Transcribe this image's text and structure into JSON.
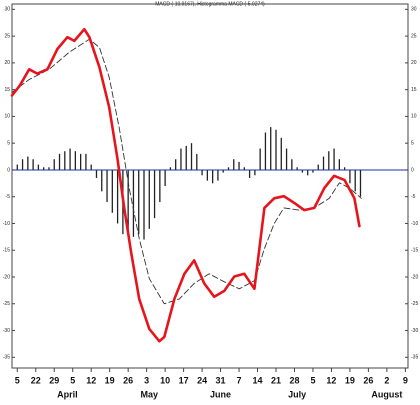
{
  "chart_data": {
    "type": "line",
    "title": "MACD (-10.9167), Histogramma MACD (-5.0274)",
    "xlim": [
      -2,
      148
    ],
    "ylim": [
      -37,
      31
    ],
    "yticks": [
      30,
      25,
      20,
      15,
      10,
      5,
      0,
      -5,
      -10,
      -15,
      -20,
      -25,
      -30,
      -35
    ],
    "xticks": [
      {
        "value": 0,
        "label": "5"
      },
      {
        "value": 7,
        "label": "22"
      },
      {
        "value": 14,
        "label": "29"
      },
      {
        "value": 21,
        "label": "5"
      },
      {
        "value": 28,
        "label": "12"
      },
      {
        "value": 35,
        "label": "19"
      },
      {
        "value": 42,
        "label": "26"
      },
      {
        "value": 49,
        "label": "3"
      },
      {
        "value": 56,
        "label": "10"
      },
      {
        "value": 63,
        "label": "17"
      },
      {
        "value": 70,
        "label": "24"
      },
      {
        "value": 77,
        "label": "31"
      },
      {
        "value": 84,
        "label": "7"
      },
      {
        "value": 91,
        "label": "14"
      },
      {
        "value": 98,
        "label": "21"
      },
      {
        "value": 105,
        "label": "28"
      },
      {
        "value": 112,
        "label": "5"
      },
      {
        "value": 119,
        "label": "12"
      },
      {
        "value": 126,
        "label": "19"
      },
      {
        "value": 133,
        "label": "26"
      },
      {
        "value": 140,
        "label": "2"
      },
      {
        "value": 147,
        "label": "9"
      }
    ],
    "month_labels": [
      {
        "value": 19,
        "label": "April"
      },
      {
        "value": 50,
        "label": "May"
      },
      {
        "value": 77,
        "label": "June"
      },
      {
        "value": 106,
        "label": "July"
      },
      {
        "value": 140,
        "label": "August"
      }
    ],
    "zero_line_color": "#1f2fa0",
    "series": [
      {
        "color": "#e8141c",
        "dash": false,
        "x": [
          -2,
          1,
          4.5,
          7.6,
          11.4,
          15.2,
          19,
          21.6,
          25.4,
          27.3,
          31.1,
          34.8,
          37.9,
          40.5,
          43.2,
          46.2,
          50,
          53.8,
          55.7,
          59.5,
          63.3,
          67,
          70.8,
          74.6,
          78.4,
          82.2,
          86,
          89.8,
          93.6,
          97.3,
          101,
          105,
          108.7,
          112.5,
          116.3,
          120,
          124,
          127.7,
          129.6
        ],
        "values": [
          13.9,
          15.8,
          18.8,
          18,
          18.8,
          22.6,
          24.8,
          24.1,
          26.3,
          24.8,
          19.2,
          11.7,
          2.3,
          -7.1,
          -15.6,
          -24.1,
          -29.7,
          -32,
          -31.2,
          -24.1,
          -19.4,
          -16.9,
          -21.2,
          -23.7,
          -22.6,
          -19.9,
          -19.4,
          -22.2,
          -7.1,
          -5.3,
          -4.9,
          -6.2,
          -7.5,
          -7.1,
          -3.4,
          -1.1,
          -1.9,
          -5.3,
          -10.5
        ]
      },
      {
        "color": "#333333",
        "dash": true,
        "x": [
          -2,
          4.5,
          12.1,
          19.7,
          27.3,
          31.1,
          34.8,
          38.6,
          42.4,
          46.2,
          50,
          55.7,
          61.4,
          67,
          72.7,
          78.4,
          84.1,
          89.8,
          93.6,
          97.3,
          101,
          106.8,
          112.5,
          118.2,
          122,
          125.8,
          130.3
        ],
        "values": [
          14.5,
          16.9,
          18.8,
          22,
          24.4,
          22.9,
          17.3,
          7.9,
          -3.4,
          -12.8,
          -20.3,
          -25,
          -24.1,
          -21.2,
          -19.4,
          -20.9,
          -22.2,
          -20.7,
          -14.7,
          -10,
          -7.1,
          -7.5,
          -7.1,
          -5.3,
          -2.4,
          -3.4,
          -5.3
        ]
      }
    ],
    "histogram": {
      "color": "#222222",
      "x": [
        0,
        2,
        4,
        6,
        8,
        10,
        12,
        14,
        16,
        18,
        20,
        22,
        24,
        26,
        28,
        30,
        32,
        34,
        36,
        38,
        40,
        42,
        44,
        46,
        48,
        50,
        52,
        54,
        56,
        58,
        60,
        62,
        64,
        66,
        68,
        70,
        72,
        74,
        76,
        78,
        80,
        82,
        84,
        86,
        88,
        90,
        92,
        94,
        96,
        98,
        100,
        102,
        104,
        106,
        108,
        110,
        112,
        114,
        116,
        118,
        120,
        122,
        124,
        126,
        128,
        130
      ],
      "values": [
        1,
        2,
        2.5,
        2,
        1,
        0.5,
        0.5,
        2,
        3,
        3.5,
        4,
        3.5,
        3,
        3,
        1,
        -1.5,
        -4,
        -6,
        -8,
        -10,
        -12,
        -12.5,
        -12.5,
        -12,
        -13,
        -11,
        -9,
        -6,
        -3,
        0.5,
        2,
        4,
        4.5,
        5,
        3,
        -1,
        -2,
        -2.5,
        -2,
        -0.5,
        0.5,
        2,
        1.5,
        0.5,
        -1.5,
        -1,
        4,
        7,
        8,
        7.5,
        6,
        4,
        2,
        0.5,
        -0.5,
        -1,
        -0.5,
        1,
        2.5,
        3.5,
        4,
        2,
        0.5,
        -2.5,
        -4,
        -5
      ]
    }
  }
}
